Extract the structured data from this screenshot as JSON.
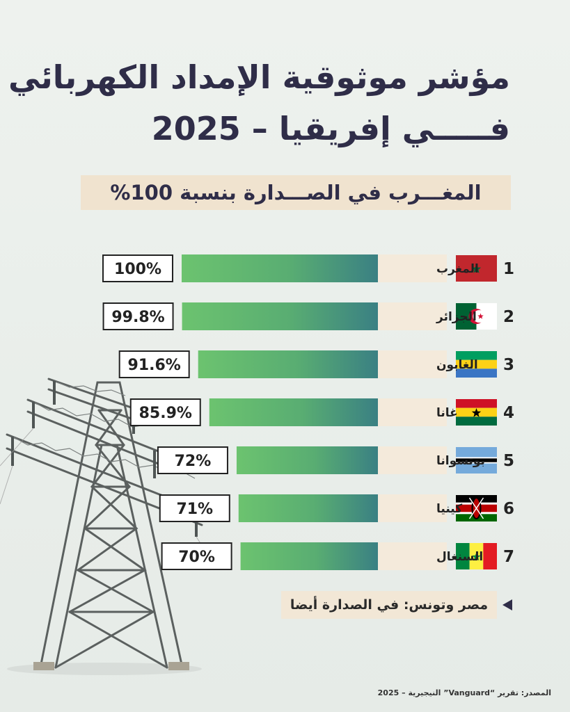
{
  "title_line1": "مؤشر موثوقية الإمداد الكهربائي",
  "title_line2": "فـــــي إفريقيا – 2025",
  "subtitle": "المغـــرب في الصـــدارة بنسبة 100%",
  "note": "مصر وتونس: في الصدارة أيضا",
  "source": "المصدر: تقرير “Vanguard” النيجيرية – 2025",
  "colors": {
    "bar_start": "#6cc36f",
    "bar_end": "#3a8083",
    "label_bg": "#f4eadb",
    "title": "#2f2d48"
  },
  "chart_data": {
    "type": "bar",
    "orientation": "horizontal",
    "title": "مؤشر موثوقية الإمداد الكهربائي فـــــي إفريقيا – 2025",
    "unit": "%",
    "xlim": [
      0,
      100
    ],
    "ranks": [
      "1",
      "2",
      "3",
      "4",
      "5",
      "6",
      "7"
    ],
    "categories": [
      "المغرب",
      "الجزائر",
      "الغابون",
      "غانا",
      "بوتسوانا",
      "كينيا",
      "السنغال"
    ],
    "values": [
      100,
      99.8,
      91.6,
      85.9,
      72,
      71,
      70
    ],
    "value_labels": [
      "100%",
      "99.8%",
      "91.6%",
      "85.9%",
      "72%",
      "71%",
      "70%"
    ],
    "flags": [
      "morocco-flag",
      "algeria-flag",
      "gabon-flag",
      "ghana-flag",
      "botswana-flag",
      "kenya-flag",
      "senegal-flag"
    ]
  }
}
